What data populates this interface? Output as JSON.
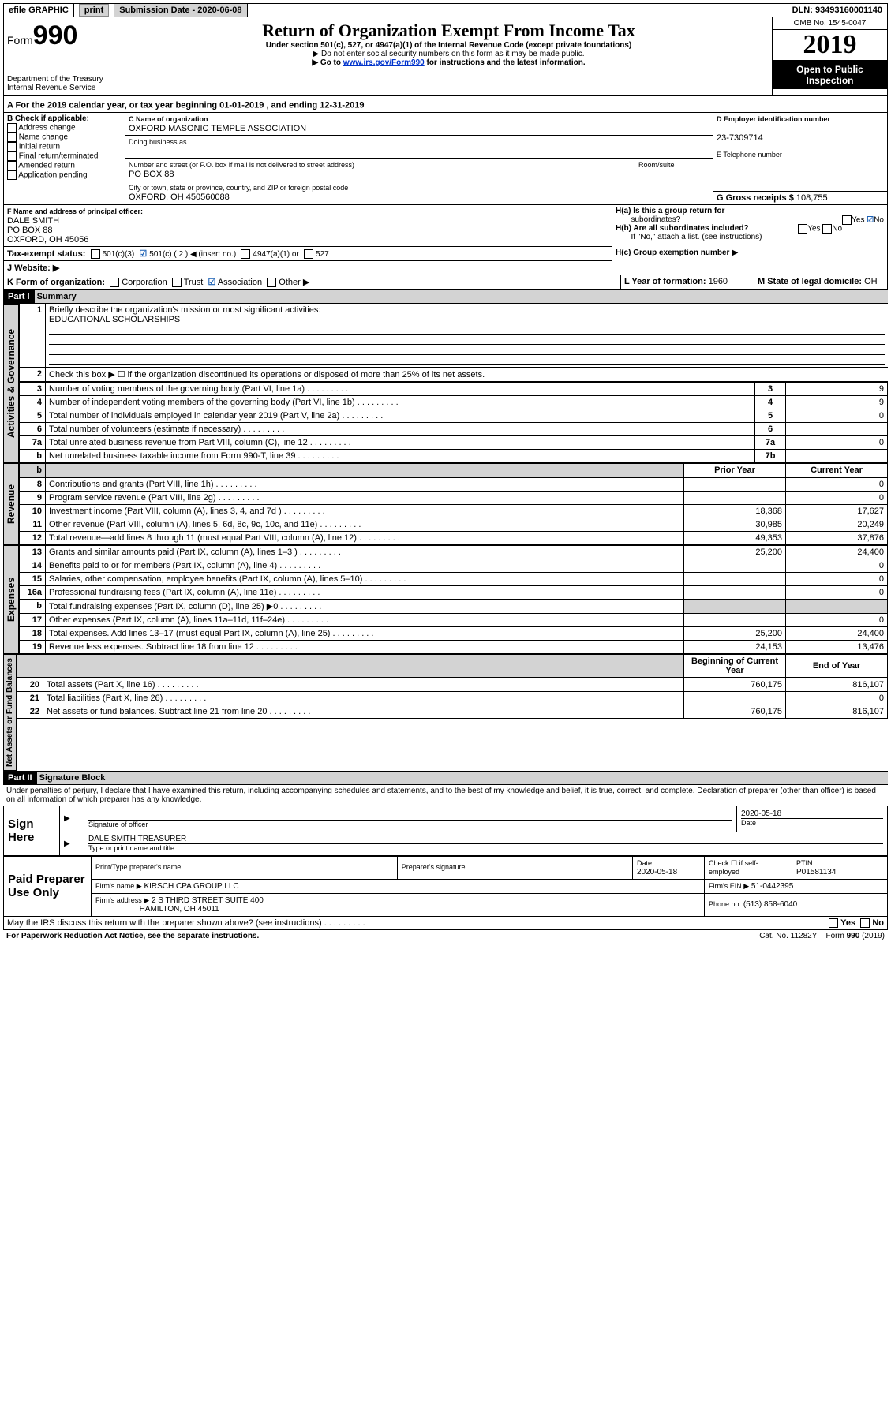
{
  "topbar": {
    "efile": "efile GRAPHIC",
    "print": "print",
    "submission_label": "Submission Date - 2020-06-08",
    "dln": "DLN: 93493160001140"
  },
  "header": {
    "form_prefix": "Form",
    "form_no": "990",
    "dept": "Department of the Treasury",
    "irs": "Internal Revenue Service",
    "title": "Return of Organization Exempt From Income Tax",
    "subtitle": "Under section 501(c), 527, or 4947(a)(1) of the Internal Revenue Code (except private foundations)",
    "note1": "▶ Do not enter social security numbers on this form as it may be made public.",
    "note2_pre": "▶ Go to ",
    "note2_link": "www.irs.gov/Form990",
    "note2_post": " for instructions and the latest information.",
    "omb": "OMB No. 1545-0047",
    "year": "2019",
    "open": "Open to Public",
    "inspection": "Inspection"
  },
  "periodA": "For the 2019 calendar year, or tax year beginning 01-01-2019   , and ending 12-31-2019",
  "sectionB": {
    "label": "B Check if applicable:",
    "addr": "Address change",
    "name": "Name change",
    "initial": "Initial return",
    "final": "Final return/terminated",
    "amended": "Amended return",
    "app": "Application pending"
  },
  "sectionC": {
    "name_label": "C Name of organization",
    "name": "OXFORD MASONIC TEMPLE ASSOCIATION",
    "dba": "Doing business as",
    "street_label": "Number and street (or P.O. box if mail is not delivered to street address)",
    "room": "Room/suite",
    "street": "PO BOX 88",
    "city_label": "City or town, state or province, country, and ZIP or foreign postal code",
    "city": "OXFORD, OH  450560088"
  },
  "sectionD": {
    "label": "D Employer identification number",
    "val": "23-7309714"
  },
  "sectionE": {
    "label": "E Telephone number",
    "val": ""
  },
  "sectionG": {
    "label": "G Gross receipts $",
    "val": "108,755"
  },
  "sectionF": {
    "label": "F  Name and address of principal officer:",
    "name": "DALE SMITH",
    "addr1": "PO BOX 88",
    "addr2": "OXFORD, OH  45056"
  },
  "sectionH": {
    "a": "H(a)  Is this a group return for",
    "a2": "subordinates?",
    "b": "H(b)  Are all subordinates included?",
    "bnote": "If \"No,\" attach a list. (see instructions)",
    "c": "H(c)  Group exemption number ▶",
    "yes": "Yes",
    "no": "No"
  },
  "sectionI": {
    "label": "Tax-exempt status:",
    "c3": "501(c)(3)",
    "c": "501(c) ( 2 ) ◀ (insert no.)",
    "a1": "4947(a)(1) or",
    "s527": "527"
  },
  "sectionJ": {
    "label": "J    Website: ▶"
  },
  "sectionK": {
    "label": "K Form of organization:",
    "corp": "Corporation",
    "trust": "Trust",
    "assoc": "Association",
    "other": "Other ▶"
  },
  "sectionL": {
    "label": "L Year of formation:",
    "val": "1960"
  },
  "sectionM": {
    "label": "M State of legal domicile:",
    "val": "OH"
  },
  "part1": {
    "num": "Part I",
    "title": "Summary"
  },
  "activities": {
    "tab": "Activities & Governance",
    "l1": "Briefly describe the organization's mission or most significant activities:",
    "l1val": "EDUCATIONAL SCHOLARSHIPS",
    "l2": "Check this box ▶ ☐  if the organization discontinued its operations or disposed of more than 25% of its net assets.",
    "rows": [
      {
        "n": "3",
        "d": "Number of voting members of the governing body (Part VI, line 1a)",
        "b": "3",
        "v": "9"
      },
      {
        "n": "4",
        "d": "Number of independent voting members of the governing body (Part VI, line 1b)",
        "b": "4",
        "v": "9"
      },
      {
        "n": "5",
        "d": "Total number of individuals employed in calendar year 2019 (Part V, line 2a)",
        "b": "5",
        "v": "0"
      },
      {
        "n": "6",
        "d": "Total number of volunteers (estimate if necessary)",
        "b": "6",
        "v": ""
      },
      {
        "n": "7a",
        "d": "Total unrelated business revenue from Part VIII, column (C), line 12",
        "b": "7a",
        "v": "0"
      },
      {
        "n": "b",
        "d": "Net unrelated business taxable income from Form 990-T, line 39",
        "b": "7b",
        "v": ""
      }
    ]
  },
  "revenue": {
    "tab": "Revenue",
    "hdr_prior": "Prior Year",
    "hdr_curr": "Current Year",
    "rows": [
      {
        "n": "8",
        "d": "Contributions and grants (Part VIII, line 1h)",
        "p": "",
        "c": "0"
      },
      {
        "n": "9",
        "d": "Program service revenue (Part VIII, line 2g)",
        "p": "",
        "c": "0"
      },
      {
        "n": "10",
        "d": "Investment income (Part VIII, column (A), lines 3, 4, and 7d )",
        "p": "18,368",
        "c": "17,627"
      },
      {
        "n": "11",
        "d": "Other revenue (Part VIII, column (A), lines 5, 6d, 8c, 9c, 10c, and 11e)",
        "p": "30,985",
        "c": "20,249"
      },
      {
        "n": "12",
        "d": "Total revenue—add lines 8 through 11 (must equal Part VIII, column (A), line 12)",
        "p": "49,353",
        "c": "37,876"
      }
    ]
  },
  "expenses": {
    "tab": "Expenses",
    "rows": [
      {
        "n": "13",
        "d": "Grants and similar amounts paid (Part IX, column (A), lines 1–3 )",
        "p": "25,200",
        "c": "24,400"
      },
      {
        "n": "14",
        "d": "Benefits paid to or for members (Part IX, column (A), line 4)",
        "p": "",
        "c": "0"
      },
      {
        "n": "15",
        "d": "Salaries, other compensation, employee benefits (Part IX, column (A), lines 5–10)",
        "p": "",
        "c": "0"
      },
      {
        "n": "16a",
        "d": "Professional fundraising fees (Part IX, column (A), line 11e)",
        "p": "",
        "c": "0"
      },
      {
        "n": "b",
        "d": "Total fundraising expenses (Part IX, column (D), line 25) ▶0",
        "p": "shade",
        "c": "shade"
      },
      {
        "n": "17",
        "d": "Other expenses (Part IX, column (A), lines 11a–11d, 11f–24e)",
        "p": "",
        "c": "0"
      },
      {
        "n": "18",
        "d": "Total expenses. Add lines 13–17 (must equal Part IX, column (A), line 25)",
        "p": "25,200",
        "c": "24,400"
      },
      {
        "n": "19",
        "d": "Revenue less expenses. Subtract line 18 from line 12",
        "p": "24,153",
        "c": "13,476"
      }
    ]
  },
  "netassets": {
    "tab": "Net Assets or Fund Balances",
    "hdr_begin": "Beginning of Current Year",
    "hdr_end": "End of Year",
    "rows": [
      {
        "n": "20",
        "d": "Total assets (Part X, line 16)",
        "p": "760,175",
        "c": "816,107"
      },
      {
        "n": "21",
        "d": "Total liabilities (Part X, line 26)",
        "p": "",
        "c": "0"
      },
      {
        "n": "22",
        "d": "Net assets or fund balances. Subtract line 21 from line 20",
        "p": "760,175",
        "c": "816,107"
      }
    ]
  },
  "part2": {
    "num": "Part II",
    "title": "Signature Block"
  },
  "perjury": "Under penalties of perjury, I declare that I have examined this return, including accompanying schedules and statements, and to the best of my knowledge and belief, it is true, correct, and complete. Declaration of preparer (other than officer) is based on all information of which preparer has any knowledge.",
  "sign": {
    "here_lbl": "Sign Here",
    "sig_officer": "Signature of officer",
    "date": "2020-05-18",
    "date_lbl": "Date",
    "name": "DALE SMITH  TREASURER",
    "name_lbl": "Type or print name and title"
  },
  "paid": {
    "lbl": "Paid Preparer Use Only",
    "h1": "Print/Type preparer's name",
    "h2": "Preparer's signature",
    "h3": "Date",
    "h3v": "2020-05-18",
    "h4": "Check ☐ if self-employed",
    "h5": "PTIN",
    "h5v": "P01581134",
    "firm_lbl": "Firm's name    ▶",
    "firm": "KIRSCH CPA GROUP LLC",
    "ein_lbl": "Firm's EIN ▶",
    "ein": "51-0442395",
    "addr_lbl": "Firm's address ▶",
    "addr": "2 S THIRD STREET SUITE 400",
    "addr2": "HAMILTON, OH  45011",
    "phone_lbl": "Phone no.",
    "phone": "(513) 858-6040"
  },
  "footer": {
    "discuss": "May the IRS discuss this return with the preparer shown above? (see instructions)",
    "yes": "Yes",
    "no": "No",
    "pra": "For Paperwork Reduction Act Notice, see the separate instructions.",
    "cat": "Cat. No. 11282Y",
    "form": "Form 990 (2019)"
  }
}
